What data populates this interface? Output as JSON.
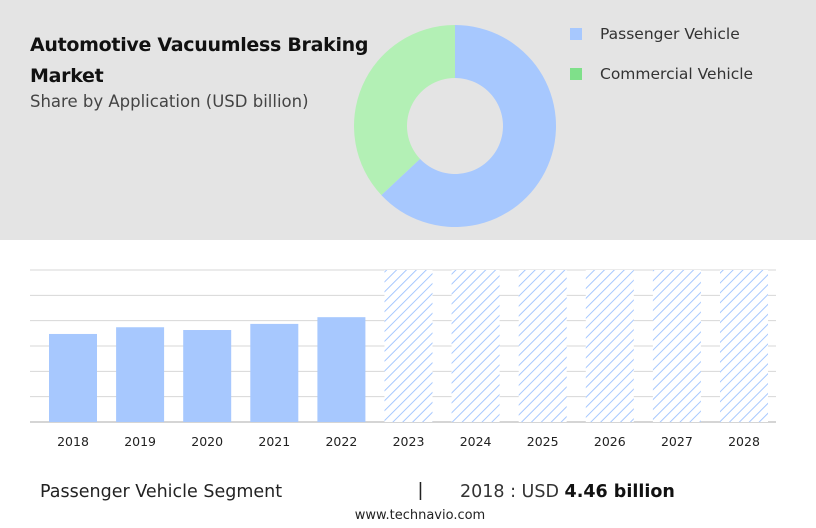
{
  "header": {
    "title": "Automotive Vacuumless Braking Market",
    "subtitle": "Share by Application (USD billion)"
  },
  "chart_data": [
    {
      "type": "pie",
      "style": "donut",
      "labels": [
        "Passenger Vehicle",
        "Commercial Vehicle"
      ],
      "values": [
        63,
        37
      ],
      "colors": [
        "#a7c8fe",
        "#b3f0b5"
      ],
      "legend": "right"
    },
    {
      "type": "bar",
      "categories": [
        "2018",
        "2019",
        "2020",
        "2021",
        "2022",
        "2023",
        "2024",
        "2025",
        "2026",
        "2027",
        "2028"
      ],
      "values": [
        4.46,
        4.8,
        4.66,
        4.97,
        5.31,
        null,
        null,
        null,
        null,
        null,
        null
      ],
      "forecast_categories": [
        "2023",
        "2024",
        "2025",
        "2026",
        "2027",
        "2028"
      ],
      "ylim": [
        0,
        7.7
      ],
      "grid": true,
      "bar_color": "#a7c8fe",
      "forecast_style": "hatched"
    }
  ],
  "footer": {
    "segment_label": "Passenger Vehicle Segment",
    "separator": "|",
    "value_prefix": "2018 : USD",
    "value_bold": "4.46 billion",
    "url": "www.technavio.com"
  }
}
